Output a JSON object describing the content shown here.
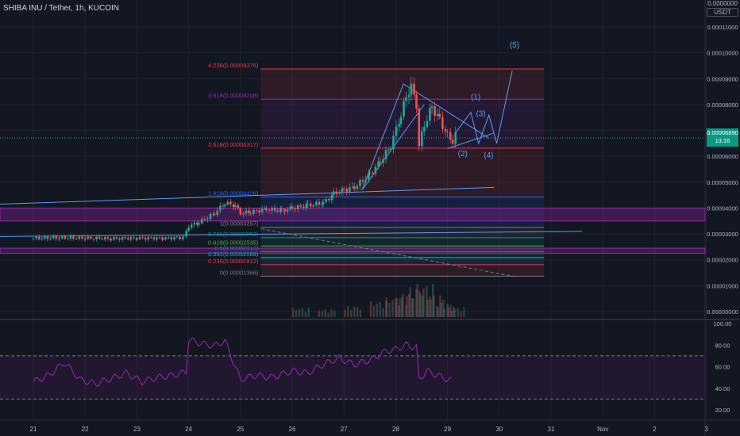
{
  "header": {
    "symbol_title": "SHIBA INU / Tether, 1h, KUCOIN",
    "unit_top": "0.0000000",
    "unit_label": "USDT"
  },
  "current_price": {
    "value": "0.00006890",
    "countdown": "13:16",
    "color": "#089981"
  },
  "colors": {
    "background": "#131722",
    "grid": "#1e222d",
    "candle_up": "#26a69a",
    "candle_down": "#ef5350",
    "rsi_line": "#9c27b0",
    "trendline": "#5b9cf6",
    "fib_red": "#f23645",
    "fib_purple": "#9c27b0",
    "fib_blue": "#2962ff",
    "wave_label": "#5b9cf6"
  },
  "chart_data": {
    "type": "candlestick",
    "symbol": "SHIBA INU / Tether",
    "interval": "1h",
    "exchange": "KUCOIN",
    "price_axis": {
      "ticks": [
        "0.00011000",
        "0.00010000",
        "0.00009000",
        "0.00008000",
        "0.00007000",
        "0.00006000",
        "0.00005000",
        "0.00004000",
        "0.00003000",
        "0.00002000",
        "0.00001000",
        "0.00000000"
      ],
      "range": [
        -1e-06,
        0.000122
      ]
    },
    "time_axis": {
      "labels": [
        "21",
        "22",
        "23",
        "24",
        "25",
        "26",
        "27",
        "28",
        "29",
        "30",
        "31",
        "Nov",
        "2",
        "3"
      ],
      "range": [
        0,
        13.5
      ]
    },
    "closes": [
      [
        0,
        2.83e-05
      ],
      [
        0.5,
        2.85e-05
      ],
      [
        1.0,
        2.84e-05
      ],
      [
        1.5,
        2.82e-05
      ],
      [
        2.0,
        2.84e-05
      ],
      [
        2.5,
        2.84e-05
      ],
      [
        2.9,
        2.86e-05
      ],
      [
        3.0,
        3.3e-05
      ],
      [
        3.2,
        3.45e-05
      ],
      [
        3.5,
        3.8e-05
      ],
      [
        3.7,
        4.2e-05
      ],
      [
        3.9,
        4.1e-05
      ],
      [
        4.0,
        3.8e-05
      ],
      [
        4.2,
        3.85e-05
      ],
      [
        4.5,
        3.95e-05
      ],
      [
        4.8,
        3.9e-05
      ],
      [
        5.0,
        4e-05
      ],
      [
        5.3,
        4.1e-05
      ],
      [
        5.6,
        4.2e-05
      ],
      [
        5.8,
        4.55e-05
      ],
      [
        6.0,
        4.7e-05
      ],
      [
        6.2,
        4.8e-05
      ],
      [
        6.5,
        5.3e-05
      ],
      [
        6.7,
        5.8e-05
      ],
      [
        6.9,
        6.4e-05
      ],
      [
        7.1,
        7.6e-05
      ],
      [
        7.2,
        8.3e-05
      ],
      [
        7.3,
        8.7e-05
      ],
      [
        7.4,
        8e-05
      ],
      [
        7.45,
        6.4e-05
      ],
      [
        7.55,
        7.2e-05
      ],
      [
        7.7,
        7.9e-05
      ],
      [
        7.85,
        7.4e-05
      ],
      [
        8.0,
        6.8e-05
      ],
      [
        8.1,
        6.6e-05
      ],
      [
        8.2,
        7e-05
      ]
    ],
    "volume_bars": [
      [
        5.0,
        12
      ],
      [
        5.5,
        10
      ],
      [
        6.0,
        14
      ],
      [
        6.5,
        20
      ],
      [
        6.8,
        25
      ],
      [
        7.0,
        30
      ],
      [
        7.2,
        38
      ],
      [
        7.4,
        42
      ],
      [
        7.6,
        28
      ],
      [
        7.8,
        18
      ],
      [
        8.0,
        12
      ]
    ],
    "fibonacci": {
      "levels": [
        {
          "label": "4.236(0.00009376)",
          "price": 9.376e-05,
          "color": "#f23645"
        },
        {
          "label": "3.618(0.00008208)",
          "price": 8.208e-05,
          "color": "#9c27b0"
        },
        {
          "label": "2.618(0.00006317)",
          "price": 6.317e-05,
          "color": "#f23645"
        },
        {
          "label": "1.618(0.00004426)",
          "price": 4.426e-05,
          "color": "#2962ff"
        },
        {
          "label": "1(0.00003257)",
          "price": 3.257e-05,
          "color": "#787b86"
        },
        {
          "label": "0.786(0.00002852)",
          "price": 2.852e-05,
          "color": "#089981"
        },
        {
          "label": "0.618(0.00002535)",
          "price": 2.535e-05,
          "color": "#4caf50"
        },
        {
          "label": "0.5(0.00002313)",
          "price": 2.313e-05,
          "color": "#089981"
        },
        {
          "label": "0.382(0.00002088)",
          "price": 2.088e-05,
          "color": "#00bcd4"
        },
        {
          "label": "0.236(0.00001812)",
          "price": 1.812e-05,
          "color": "#f23645"
        },
        {
          "label": "0(0.00001366)",
          "price": 1.366e-05,
          "color": "#787b86"
        }
      ],
      "time_range": [
        4.7,
        9.3
      ]
    },
    "zones": [
      {
        "price_top": 4e-05,
        "price_bottom": 3.5e-05,
        "color": "#9c27b0"
      },
      {
        "price_top": 2.45e-05,
        "price_bottom": 2.25e-05,
        "color": "#9c27b0"
      }
    ],
    "wave_labels": [
      {
        "label": "(1)",
        "t": 8.45,
        "price": 8.2e-05
      },
      {
        "label": "(2)",
        "t": 8.2,
        "price": 6e-05
      },
      {
        "label": "(3)",
        "t": 8.55,
        "price": 7.55e-05
      },
      {
        "label": "(4)",
        "t": 8.7,
        "price": 5.95e-05
      },
      {
        "label": "(5)",
        "t": 9.2,
        "price": 0.000102
      }
    ],
    "rsi": {
      "axis_labels": [
        "100.00",
        "80.00",
        "60.00",
        "40.00",
        "20.00"
      ],
      "range": [
        20,
        100
      ],
      "upper_band": 70,
      "lower_band": 30,
      "values": [
        [
          0,
          46
        ],
        [
          0.3,
          52
        ],
        [
          0.6,
          64
        ],
        [
          0.9,
          48
        ],
        [
          1.2,
          44
        ],
        [
          1.5,
          49
        ],
        [
          1.8,
          54
        ],
        [
          2.1,
          46
        ],
        [
          2.4,
          50
        ],
        [
          2.7,
          52
        ],
        [
          2.95,
          55
        ],
        [
          3.0,
          85
        ],
        [
          3.2,
          82
        ],
        [
          3.5,
          79
        ],
        [
          3.7,
          84
        ],
        [
          4.0,
          48
        ],
        [
          4.3,
          52
        ],
        [
          4.6,
          50
        ],
        [
          5.0,
          56
        ],
        [
          5.3,
          54
        ],
        [
          5.6,
          62
        ],
        [
          5.9,
          68
        ],
        [
          6.2,
          62
        ],
        [
          6.5,
          66
        ],
        [
          6.8,
          74
        ],
        [
          7.0,
          76
        ],
        [
          7.2,
          80
        ],
        [
          7.4,
          78
        ],
        [
          7.45,
          48
        ],
        [
          7.6,
          56
        ],
        [
          7.8,
          52
        ],
        [
          8.0,
          48
        ],
        [
          8.1,
          47
        ]
      ]
    }
  }
}
